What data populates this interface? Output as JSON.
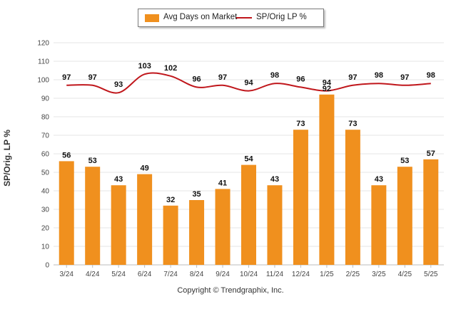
{
  "legend": {
    "bar_label": "Avg Days on Market",
    "line_label": "SP/Orig LP %"
  },
  "y_axis_title": "SP/Orig. LP %",
  "copyright": "Copyright © Trendgraphix, Inc.",
  "colors": {
    "bar": "#f0901e",
    "line": "#c0161b",
    "grid": "#e6e6e6"
  },
  "chart_data": {
    "type": "bar",
    "categories": [
      "3/24",
      "4/24",
      "5/24",
      "6/24",
      "7/24",
      "8/24",
      "9/24",
      "10/24",
      "11/24",
      "12/24",
      "1/25",
      "2/25",
      "3/25",
      "4/25",
      "5/25"
    ],
    "y_ticks": [
      0,
      10,
      20,
      30,
      40,
      50,
      60,
      70,
      80,
      90,
      100,
      110,
      120
    ],
    "ylim": [
      0,
      120
    ],
    "grid": true,
    "legend_position": "top-center",
    "series": [
      {
        "name": "Avg Days on Market",
        "type": "bar",
        "values": [
          56,
          53,
          43,
          49,
          32,
          35,
          41,
          54,
          43,
          73,
          92,
          73,
          43,
          53,
          57
        ]
      },
      {
        "name": "SP/Orig LP %",
        "type": "line",
        "values": [
          97,
          97,
          93,
          103,
          102,
          96,
          97,
          94,
          98,
          96,
          94,
          97,
          98,
          97,
          98
        ]
      }
    ]
  }
}
